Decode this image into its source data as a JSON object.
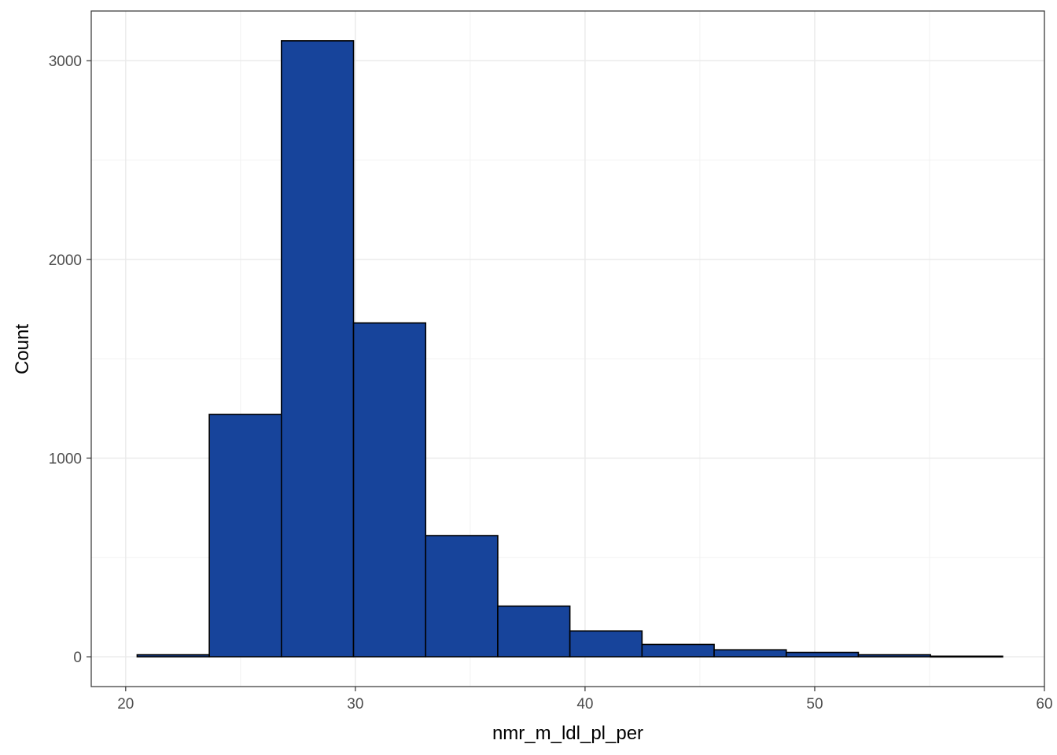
{
  "chart_data": {
    "type": "bar",
    "subtype": "histogram",
    "xlabel": "nmr_m_ldl_pl_per",
    "ylabel": "Count",
    "xlim": [
      18.5,
      60
    ],
    "ylim": [
      -150,
      3250
    ],
    "x_ticks_major": [
      20,
      30,
      40,
      50,
      60
    ],
    "y_ticks_major": [
      0,
      1000,
      2000,
      3000
    ],
    "grid": true,
    "legend": "none",
    "bar_fill": "#17449b",
    "bar_stroke": "#000000",
    "bins": [
      {
        "x0": 20.5,
        "x1": 23.64,
        "count": 10
      },
      {
        "x0": 23.64,
        "x1": 26.78,
        "count": 1220
      },
      {
        "x0": 26.78,
        "x1": 29.92,
        "count": 3100
      },
      {
        "x0": 29.92,
        "x1": 33.06,
        "count": 1680
      },
      {
        "x0": 33.06,
        "x1": 36.2,
        "count": 610
      },
      {
        "x0": 36.2,
        "x1": 39.34,
        "count": 255
      },
      {
        "x0": 39.34,
        "x1": 42.48,
        "count": 130
      },
      {
        "x0": 42.48,
        "x1": 45.62,
        "count": 62
      },
      {
        "x0": 45.62,
        "x1": 48.76,
        "count": 35
      },
      {
        "x0": 48.76,
        "x1": 51.9,
        "count": 22
      },
      {
        "x0": 51.9,
        "x1": 55.04,
        "count": 10
      },
      {
        "x0": 55.04,
        "x1": 58.18,
        "count": 3
      }
    ]
  }
}
